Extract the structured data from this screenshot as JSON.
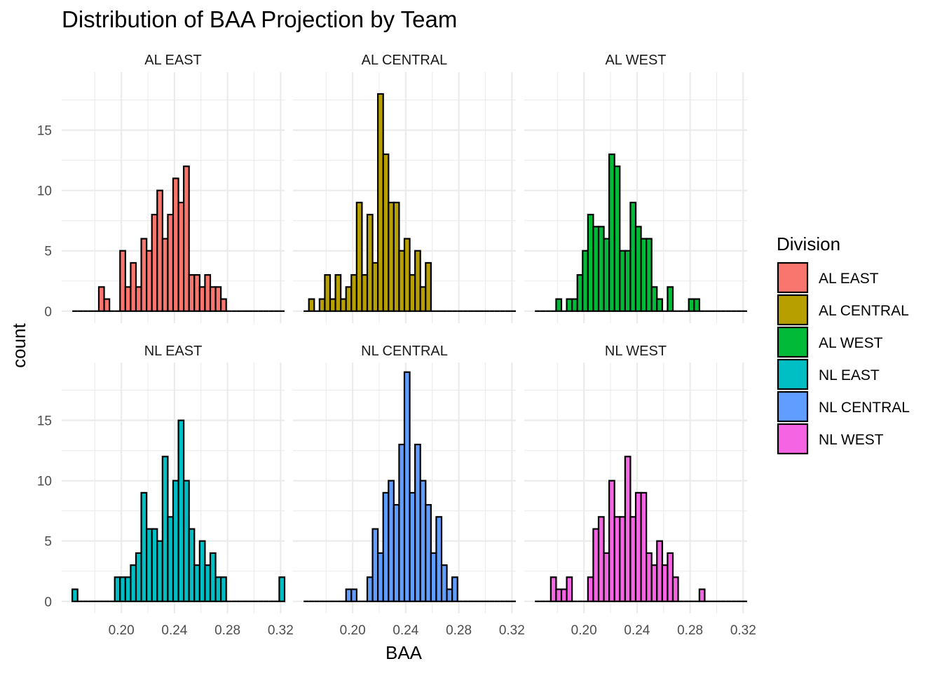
{
  "chart_data": {
    "type": "bar",
    "title": "Distribution of BAA Projection by Team",
    "xlabel": "BAA",
    "ylabel": "count",
    "xlim": [
      0.155,
      0.323
    ],
    "ylim": [
      -1,
      19.8
    ],
    "x_ticks": [
      0.2,
      0.24,
      0.28,
      0.32
    ],
    "x_tick_labels": [
      "0.20",
      "0.24",
      "0.28",
      "0.32"
    ],
    "y_ticks": [
      0,
      5,
      10,
      15
    ],
    "y_tick_labels": [
      "0",
      "5",
      "10",
      "15"
    ],
    "grid": true,
    "legend": {
      "title": "Division",
      "placement": "right",
      "entries": [
        "AL EAST",
        "AL CENTRAL",
        "AL WEST",
        "NL EAST",
        "NL CENTRAL",
        "NL WEST"
      ]
    },
    "bin_start": 0.163,
    "bin_width": 0.004,
    "bin_count": 40,
    "panels": [
      {
        "name": "AL EAST",
        "color": "#F8766D",
        "counts": [
          0,
          0,
          0,
          0,
          0,
          2,
          1,
          0,
          0,
          5,
          2,
          4,
          2,
          6,
          5,
          8,
          10,
          6,
          8,
          11,
          9,
          12,
          3,
          3,
          2,
          3,
          2,
          2,
          1,
          0,
          0,
          0,
          0,
          0,
          0,
          0,
          0,
          0,
          0,
          0
        ]
      },
      {
        "name": "AL CENTRAL",
        "color": "#B79F00",
        "counts": [
          0,
          1,
          0,
          1,
          3,
          1,
          3,
          1,
          2,
          3,
          9,
          3,
          8,
          4,
          18,
          13,
          9,
          9,
          5,
          6,
          3,
          5,
          2,
          4,
          0,
          0,
          0,
          0,
          0,
          0,
          0,
          0,
          0,
          0,
          0,
          0,
          0,
          0,
          0,
          0
        ]
      },
      {
        "name": "AL WEST",
        "color": "#00BA38",
        "counts": [
          0,
          0,
          0,
          0,
          1,
          0,
          1,
          1,
          3,
          5,
          8,
          7,
          7,
          6,
          13,
          12,
          5,
          5,
          9,
          7,
          6,
          6,
          2,
          1,
          0,
          2,
          0,
          0,
          0,
          1,
          1,
          0,
          0,
          0,
          0,
          0,
          0,
          0,
          0,
          0
        ]
      },
      {
        "name": "NL EAST",
        "color": "#00BFC4",
        "counts": [
          1,
          0,
          0,
          0,
          0,
          0,
          0,
          0,
          2,
          2,
          2,
          3,
          4,
          9,
          6,
          6,
          5,
          12,
          7,
          10,
          15,
          10,
          6,
          3,
          5,
          3,
          4,
          2,
          2,
          0,
          0,
          0,
          0,
          0,
          0,
          0,
          0,
          0,
          0,
          2
        ]
      },
      {
        "name": "NL CENTRAL",
        "color": "#619CFF",
        "counts": [
          0,
          0,
          0,
          0,
          0,
          0,
          0,
          0,
          1,
          1,
          0,
          0,
          2,
          6,
          4,
          9,
          10,
          8,
          13,
          19,
          9,
          13,
          10,
          8,
          4,
          7,
          3,
          1,
          2,
          0,
          0,
          0,
          0,
          0,
          0,
          0,
          0,
          0,
          0,
          0
        ]
      },
      {
        "name": "NL WEST",
        "color": "#F564E3",
        "counts": [
          0,
          0,
          0,
          2,
          1,
          1,
          2,
          0,
          0,
          0,
          2,
          6,
          7,
          4,
          10,
          7,
          7,
          12,
          7,
          9,
          9,
          4,
          3,
          5,
          3,
          4,
          2,
          0,
          0,
          0,
          0,
          1,
          0,
          0,
          0,
          0,
          0,
          0,
          0,
          0
        ]
      }
    ]
  }
}
